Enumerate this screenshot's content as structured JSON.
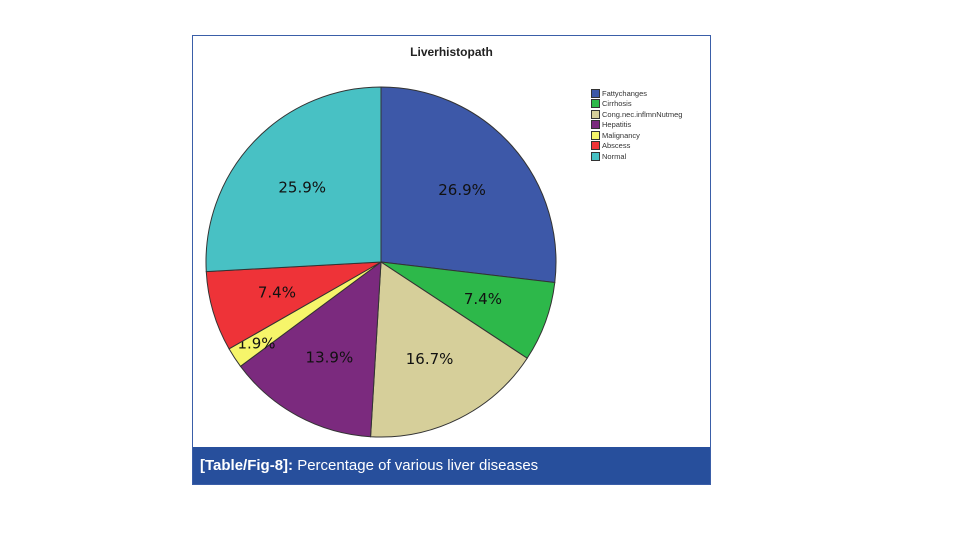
{
  "chart_data": {
    "type": "pie",
    "title": "Liverhistopath",
    "categories": [
      "Fattychanges",
      "Cirrhosis",
      "Cong.nec.inflmnNutmeg",
      "Hepatitis",
      "Malignancy",
      "Abscess",
      "Normal"
    ],
    "values": [
      26.9,
      7.4,
      16.7,
      13.9,
      1.9,
      7.4,
      25.9
    ],
    "labels": [
      "26.9%",
      "7.4%",
      "16.7%",
      "13.9%",
      "1.9%",
      "7.4%",
      "25.9%"
    ],
    "colors": [
      "#3d58a8",
      "#2db84a",
      "#d6cf9a",
      "#7b2a7e",
      "#f6f56a",
      "#ee3338",
      "#48c1c4"
    ],
    "legend": "top-right"
  },
  "caption": {
    "bold": "[Table/Fig-8]:",
    "text": " Percentage of various liver diseases"
  }
}
